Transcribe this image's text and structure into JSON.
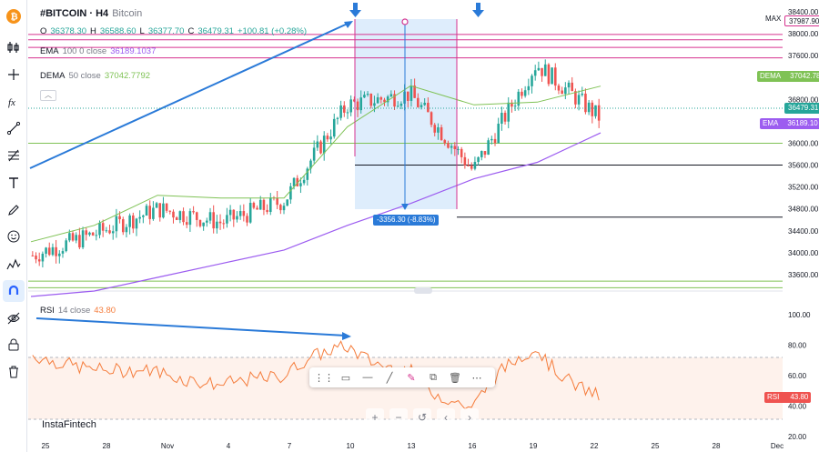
{
  "header": {
    "symbol": "#BITCOIN · H4",
    "name": "Bitcoin",
    "o_label": "O",
    "o_value": "36378.30",
    "h_label": "H",
    "h_value": "36588.60",
    "l_label": "L",
    "l_value": "36377.70",
    "c_label": "C",
    "c_value": "36479.31",
    "change": "+100.81 (+0.28%)"
  },
  "indicators": {
    "ema": {
      "name": "EMA",
      "params": "100  0  close",
      "value": "36189.1037"
    },
    "dema": {
      "name": "DEMA",
      "params": "50  close",
      "value": "37042.7792"
    },
    "rsi": {
      "name": "RSI",
      "params": "14  close",
      "value": "43.80"
    }
  },
  "price_axis": {
    "ticks": [
      "38400.00",
      "38000.00",
      "37600.00",
      "37200.00",
      "36800.00",
      "36400.00",
      "36000.00",
      "35600.00",
      "35200.00",
      "34800.00",
      "34400.00",
      "34000.00",
      "33600.00"
    ],
    "max_label": "MAX",
    "max_value": "37987.90",
    "dema_badge": {
      "label": "DEMA",
      "value": "37042.78"
    },
    "price_badge": {
      "value": "36479.31"
    },
    "ema_badge": {
      "label": "EMA",
      "value": "36189.10"
    }
  },
  "rsi_axis": {
    "ticks": [
      "100.00",
      "80.00",
      "60.00",
      "40.00",
      "20.00"
    ],
    "badge": {
      "label": "RSI",
      "value": "43.80"
    }
  },
  "time_axis": {
    "ticks": [
      "25",
      "28",
      "Nov",
      "4",
      "7",
      "10",
      "13",
      "16",
      "19",
      "22",
      "25",
      "28",
      "Dec"
    ]
  },
  "measure": {
    "label": "-3356.30 (-8.83%)"
  },
  "watermark": "InstaFintech",
  "colors": {
    "up": "#26a69a",
    "down": "#ef5350",
    "ema": "#9c5cf0",
    "dema": "#7fc255",
    "rsi": "#f57c3b",
    "annotation": "#2a7ad8",
    "hline": "#d6338f",
    "measure_fill": "#d6e8fb"
  },
  "toolbar_icons": [
    "bitcoin-logo-icon",
    "candle-style-icon",
    "crosshair-icon",
    "fx-icon",
    "trend-line-icon",
    "fib-icon",
    "text-icon",
    "brush-icon",
    "emoji-icon",
    "pattern-icon",
    "magnet-icon",
    "hide-drawings-icon",
    "lock-drawings-icon",
    "trash-icon"
  ],
  "chart_data": {
    "type": "candlestick",
    "title": "#BITCOIN · H4",
    "ylabel": "",
    "ylim": [
      33300,
      38500
    ],
    "x": [
      "Oct 25",
      "Oct 28",
      "Nov 1",
      "Nov 4",
      "Nov 7",
      "Nov 10",
      "Nov 13",
      "Nov 16",
      "Nov 19",
      "Nov 22"
    ],
    "close_approx": [
      33950,
      34350,
      34800,
      34550,
      34950,
      36700,
      36900,
      35500,
      37450,
      36479.31
    ],
    "series": [
      {
        "name": "EMA 100",
        "values": [
          33200,
          33300,
          33550,
          33800,
          34050,
          34500,
          34900,
          35350,
          35650,
          36189.1
        ]
      },
      {
        "name": "DEMA 50",
        "values": [
          34200,
          34500,
          35050,
          35000,
          35000,
          36300,
          37050,
          36700,
          36750,
          37042.78
        ]
      }
    ],
    "hlines": [
      37987.9,
      37890,
      37750,
      37560,
      36000,
      35600,
      34650
    ],
    "measurement": {
      "from": 37987.9,
      "to": 34631.6,
      "change": -3356.3,
      "change_pct": -8.83
    },
    "rsi": {
      "ylim": [
        20,
        110
      ],
      "upper": 70,
      "lower": 30,
      "last": 43.8
    }
  }
}
